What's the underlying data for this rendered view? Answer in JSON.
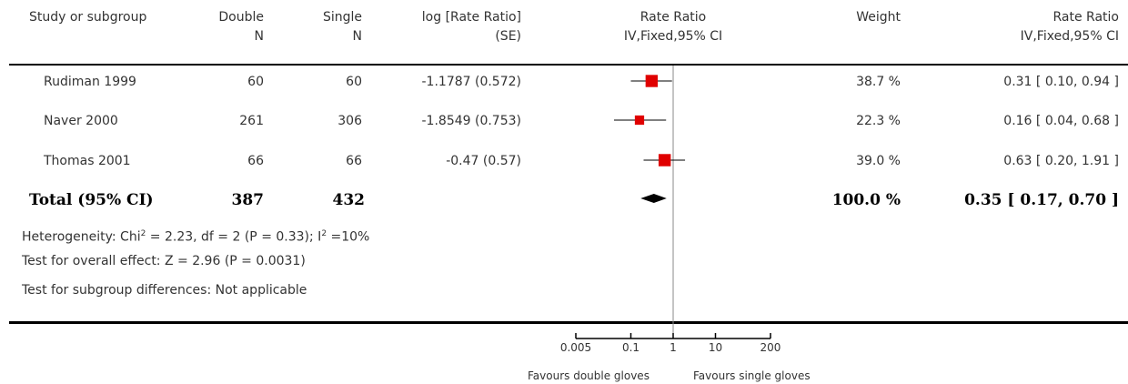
{
  "headers": {
    "study": "Study or subgroup",
    "double": "Double",
    "double_sub": "N",
    "single": "Single",
    "single_sub": "N",
    "logrr": "log [Rate Ratio]",
    "logrr_sub": "(SE)",
    "rr_plot": "Rate Ratio",
    "rr_plot_sub": "IV,Fixed,95% CI",
    "weight": "Weight",
    "rr": "Rate Ratio",
    "rr_sub": "IV,Fixed,95% CI"
  },
  "studies": [
    {
      "name": "Rudiman 1999",
      "double_n": "60",
      "single_n": "60",
      "logrr_se": "-1.1787 (0.572)",
      "weight": "38.7 %",
      "rr_ci": "0.31 [ 0.10, 0.94 ]"
    },
    {
      "name": "Naver 2000",
      "double_n": "261",
      "single_n": "306",
      "logrr_se": "-1.8549 (0.753)",
      "weight": "22.3 %",
      "rr_ci": "0.16 [ 0.04, 0.68 ]"
    },
    {
      "name": "Thomas 2001",
      "double_n": "66",
      "single_n": "66",
      "logrr_se": "-0.47 (0.57)",
      "weight": "39.0 %",
      "rr_ci": "0.63 [ 0.20, 1.91 ]"
    }
  ],
  "total": {
    "label": "Total (95% CI)",
    "double_n": "387",
    "single_n": "432",
    "weight": "100.0 %",
    "rr_ci": "0.35 [ 0.17, 0.70 ]"
  },
  "heterogeneity": {
    "prefix": "Heterogeneity: Chi",
    "sup1": "2",
    "mid": " = 2.23, df = 2 (P = 0.33); I",
    "sup2": "2",
    "suffix": " =10%"
  },
  "overall_effect": "Test for overall effect: Z = 2.96 (P = 0.0031)",
  "subgroup_diff": "Test for subgroup differences: Not applicable",
  "favours_left": "Favours double gloves",
  "favours_right": "Favours single gloves",
  "colors": {
    "square": "#e00000",
    "line": "#000000",
    "axis": "#888888"
  },
  "chart_data": {
    "type": "forest",
    "x_scale": "log",
    "x_ticks": [
      0.005,
      0.1,
      1,
      10,
      200
    ],
    "x_tick_labels": [
      "0.005",
      "0.1",
      "1",
      "10",
      "200"
    ],
    "null_line": 1,
    "points": [
      {
        "name": "Rudiman 1999",
        "estimate": 0.31,
        "lower": 0.1,
        "upper": 0.94,
        "weight": 38.7
      },
      {
        "name": "Naver 2000",
        "estimate": 0.16,
        "lower": 0.04,
        "upper": 0.68,
        "weight": 22.3
      },
      {
        "name": "Thomas 2001",
        "estimate": 0.63,
        "lower": 0.2,
        "upper": 1.91,
        "weight": 39.0
      }
    ],
    "pooled": {
      "estimate": 0.35,
      "lower": 0.17,
      "upper": 0.7
    }
  }
}
